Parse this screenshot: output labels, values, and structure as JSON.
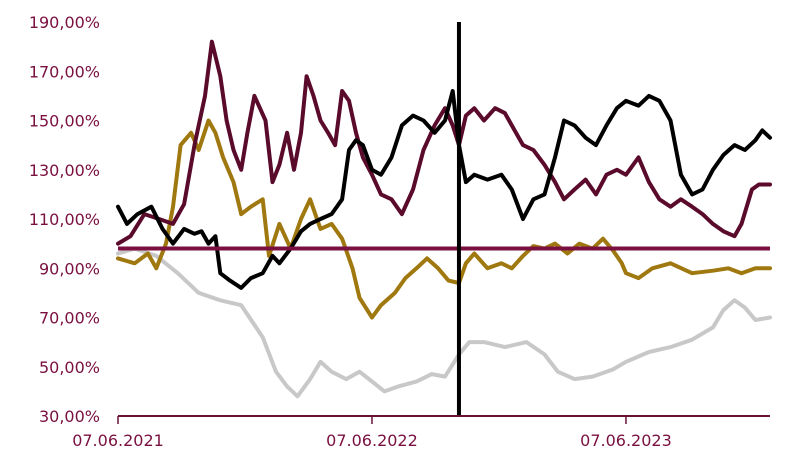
{
  "chart_data": {
    "type": "line",
    "title": "",
    "xlabel": "",
    "ylabel": "",
    "x_tick_labels": [
      "07.06.2021",
      "07.06.2022",
      "07.06.2023"
    ],
    "x_tick_dates": [
      "2021-06-07",
      "2022-06-07",
      "2023-06-07"
    ],
    "x_range": [
      "2021-06-07",
      "2023-12-31"
    ],
    "y_tick_labels": [
      "30,00%",
      "50,00%",
      "70,00%",
      "90,00%",
      "110,00%",
      "130,00%",
      "150,00%",
      "170,00%",
      "190,00%"
    ],
    "y_ticks": [
      30,
      50,
      70,
      90,
      110,
      130,
      150,
      170,
      190
    ],
    "ylim": [
      30,
      190
    ],
    "grid": false,
    "legend": "none",
    "reference_line": {
      "value": 98,
      "color": "#7a1040"
    },
    "vertical_marker": {
      "date": "2022-10-10",
      "color": "#000000"
    },
    "series": [
      {
        "color": "#c8c8c8",
        "points": [
          [
            "2021-06-07",
            96
          ],
          [
            "2021-07-01",
            98
          ],
          [
            "2021-08-01",
            95
          ],
          [
            "2021-09-01",
            88
          ],
          [
            "2021-10-01",
            80
          ],
          [
            "2021-11-01",
            77
          ],
          [
            "2021-12-01",
            75
          ],
          [
            "2022-01-01",
            62
          ],
          [
            "2022-01-20",
            48
          ],
          [
            "2022-02-05",
            42
          ],
          [
            "2022-02-20",
            38
          ],
          [
            "2022-03-10",
            45
          ],
          [
            "2022-03-25",
            52
          ],
          [
            "2022-04-10",
            48
          ],
          [
            "2022-05-01",
            45
          ],
          [
            "2022-05-20",
            48
          ],
          [
            "2022-06-07",
            44
          ],
          [
            "2022-06-25",
            40
          ],
          [
            "2022-07-15",
            42
          ],
          [
            "2022-08-10",
            44
          ],
          [
            "2022-09-01",
            47
          ],
          [
            "2022-09-20",
            46
          ],
          [
            "2022-10-10",
            55
          ],
          [
            "2022-10-25",
            60
          ],
          [
            "2022-11-15",
            60
          ],
          [
            "2022-12-15",
            58
          ],
          [
            "2023-01-15",
            60
          ],
          [
            "2023-02-10",
            55
          ],
          [
            "2023-03-01",
            48
          ],
          [
            "2023-03-25",
            45
          ],
          [
            "2023-04-20",
            46
          ],
          [
            "2023-05-20",
            49
          ],
          [
            "2023-06-07",
            52
          ],
          [
            "2023-07-10",
            56
          ],
          [
            "2023-08-10",
            58
          ],
          [
            "2023-09-10",
            61
          ],
          [
            "2023-10-10",
            66
          ],
          [
            "2023-10-25",
            73
          ],
          [
            "2023-11-10",
            77
          ],
          [
            "2023-11-25",
            74
          ],
          [
            "2023-12-10",
            69
          ],
          [
            "2023-12-31",
            70
          ]
        ]
      },
      {
        "color": "#a07810",
        "points": [
          [
            "2021-06-07",
            94
          ],
          [
            "2021-07-01",
            92
          ],
          [
            "2021-07-20",
            96
          ],
          [
            "2021-08-01",
            90
          ],
          [
            "2021-08-15",
            100
          ],
          [
            "2021-08-25",
            115
          ],
          [
            "2021-09-05",
            140
          ],
          [
            "2021-09-20",
            145
          ],
          [
            "2021-10-01",
            138
          ],
          [
            "2021-10-15",
            150
          ],
          [
            "2021-10-25",
            145
          ],
          [
            "2021-11-05",
            135
          ],
          [
            "2021-11-20",
            125
          ],
          [
            "2021-12-01",
            112
          ],
          [
            "2021-12-15",
            115
          ],
          [
            "2022-01-01",
            118
          ],
          [
            "2022-01-10",
            95
          ],
          [
            "2022-01-25",
            108
          ],
          [
            "2022-02-10",
            98
          ],
          [
            "2022-02-25",
            110
          ],
          [
            "2022-03-10",
            118
          ],
          [
            "2022-03-25",
            106
          ],
          [
            "2022-04-10",
            108
          ],
          [
            "2022-04-25",
            102
          ],
          [
            "2022-05-10",
            90
          ],
          [
            "2022-05-20",
            78
          ],
          [
            "2022-06-07",
            70
          ],
          [
            "2022-06-20",
            75
          ],
          [
            "2022-07-10",
            80
          ],
          [
            "2022-07-25",
            86
          ],
          [
            "2022-08-10",
            90
          ],
          [
            "2022-08-25",
            94
          ],
          [
            "2022-09-10",
            90
          ],
          [
            "2022-09-25",
            85
          ],
          [
            "2022-10-10",
            84
          ],
          [
            "2022-10-20",
            92
          ],
          [
            "2022-11-01",
            96
          ],
          [
            "2022-11-20",
            90
          ],
          [
            "2022-12-10",
            92
          ],
          [
            "2022-12-25",
            90
          ],
          [
            "2023-01-10",
            95
          ],
          [
            "2023-01-25",
            99
          ],
          [
            "2023-02-10",
            98
          ],
          [
            "2023-02-25",
            100
          ],
          [
            "2023-03-15",
            96
          ],
          [
            "2023-04-01",
            100
          ],
          [
            "2023-04-20",
            98
          ],
          [
            "2023-05-05",
            102
          ],
          [
            "2023-05-20",
            97
          ],
          [
            "2023-06-01",
            92
          ],
          [
            "2023-06-07",
            88
          ],
          [
            "2023-06-25",
            86
          ],
          [
            "2023-07-15",
            90
          ],
          [
            "2023-08-10",
            92
          ],
          [
            "2023-09-10",
            88
          ],
          [
            "2023-10-10",
            89
          ],
          [
            "2023-11-01",
            90
          ],
          [
            "2023-11-20",
            88
          ],
          [
            "2023-12-10",
            90
          ],
          [
            "2023-12-31",
            90
          ]
        ]
      },
      {
        "color": "#5a0a2a",
        "points": [
          [
            "2021-06-07",
            100
          ],
          [
            "2021-06-25",
            103
          ],
          [
            "2021-07-15",
            112
          ],
          [
            "2021-08-05",
            110
          ],
          [
            "2021-08-25",
            108
          ],
          [
            "2021-09-10",
            116
          ],
          [
            "2021-09-25",
            140
          ],
          [
            "2021-10-10",
            160
          ],
          [
            "2021-10-20",
            182
          ],
          [
            "2021-11-01",
            168
          ],
          [
            "2021-11-10",
            150
          ],
          [
            "2021-11-20",
            138
          ],
          [
            "2021-12-01",
            130
          ],
          [
            "2021-12-10",
            145
          ],
          [
            "2021-12-20",
            160
          ],
          [
            "2022-01-05",
            150
          ],
          [
            "2022-01-15",
            125
          ],
          [
            "2022-01-25",
            132
          ],
          [
            "2022-02-05",
            145
          ],
          [
            "2022-02-15",
            130
          ],
          [
            "2022-02-25",
            145
          ],
          [
            "2022-03-05",
            168
          ],
          [
            "2022-03-15",
            160
          ],
          [
            "2022-03-25",
            150
          ],
          [
            "2022-04-05",
            145
          ],
          [
            "2022-04-15",
            140
          ],
          [
            "2022-04-25",
            162
          ],
          [
            "2022-05-05",
            158
          ],
          [
            "2022-05-15",
            145
          ],
          [
            "2022-05-25",
            135
          ],
          [
            "2022-06-07",
            128
          ],
          [
            "2022-06-20",
            120
          ],
          [
            "2022-07-05",
            118
          ],
          [
            "2022-07-20",
            112
          ],
          [
            "2022-08-05",
            122
          ],
          [
            "2022-08-20",
            138
          ],
          [
            "2022-09-05",
            148
          ],
          [
            "2022-09-20",
            155
          ],
          [
            "2022-10-01",
            148
          ],
          [
            "2022-10-10",
            140
          ],
          [
            "2022-10-20",
            152
          ],
          [
            "2022-11-01",
            155
          ],
          [
            "2022-11-15",
            150
          ],
          [
            "2022-12-01",
            155
          ],
          [
            "2022-12-15",
            153
          ],
          [
            "2022-12-25",
            148
          ],
          [
            "2023-01-10",
            140
          ],
          [
            "2023-01-25",
            138
          ],
          [
            "2023-02-10",
            132
          ],
          [
            "2023-02-25",
            125
          ],
          [
            "2023-03-10",
            118
          ],
          [
            "2023-03-25",
            122
          ],
          [
            "2023-04-10",
            126
          ],
          [
            "2023-04-25",
            120
          ],
          [
            "2023-05-10",
            128
          ],
          [
            "2023-05-25",
            130
          ],
          [
            "2023-06-07",
            128
          ],
          [
            "2023-06-25",
            135
          ],
          [
            "2023-07-10",
            125
          ],
          [
            "2023-07-25",
            118
          ],
          [
            "2023-08-10",
            115
          ],
          [
            "2023-08-25",
            118
          ],
          [
            "2023-09-10",
            115
          ],
          [
            "2023-09-25",
            112
          ],
          [
            "2023-10-10",
            108
          ],
          [
            "2023-10-25",
            105
          ],
          [
            "2023-11-10",
            103
          ],
          [
            "2023-11-20",
            108
          ],
          [
            "2023-12-05",
            122
          ],
          [
            "2023-12-15",
            124
          ],
          [
            "2023-12-31",
            124
          ]
        ]
      },
      {
        "color": "#000000",
        "points": [
          [
            "2021-06-07",
            115
          ],
          [
            "2021-06-20",
            108
          ],
          [
            "2021-07-05",
            112
          ],
          [
            "2021-07-25",
            115
          ],
          [
            "2021-08-10",
            106
          ],
          [
            "2021-08-25",
            100
          ],
          [
            "2021-09-10",
            106
          ],
          [
            "2021-09-25",
            104
          ],
          [
            "2021-10-05",
            105
          ],
          [
            "2021-10-15",
            100
          ],
          [
            "2021-10-25",
            103
          ],
          [
            "2021-11-01",
            88
          ],
          [
            "2021-11-15",
            85
          ],
          [
            "2021-12-01",
            82
          ],
          [
            "2021-12-15",
            86
          ],
          [
            "2022-01-01",
            88
          ],
          [
            "2022-01-15",
            95
          ],
          [
            "2022-01-25",
            92
          ],
          [
            "2022-02-10",
            98
          ],
          [
            "2022-02-25",
            105
          ],
          [
            "2022-03-10",
            108
          ],
          [
            "2022-03-25",
            110
          ],
          [
            "2022-04-10",
            112
          ],
          [
            "2022-04-25",
            118
          ],
          [
            "2022-05-05",
            138
          ],
          [
            "2022-05-15",
            142
          ],
          [
            "2022-05-25",
            140
          ],
          [
            "2022-06-07",
            130
          ],
          [
            "2022-06-20",
            128
          ],
          [
            "2022-07-05",
            135
          ],
          [
            "2022-07-20",
            148
          ],
          [
            "2022-08-05",
            152
          ],
          [
            "2022-08-20",
            150
          ],
          [
            "2022-09-05",
            145
          ],
          [
            "2022-09-20",
            150
          ],
          [
            "2022-10-01",
            162
          ],
          [
            "2022-10-10",
            140
          ],
          [
            "2022-10-20",
            125
          ],
          [
            "2022-11-01",
            128
          ],
          [
            "2022-11-20",
            126
          ],
          [
            "2022-12-10",
            128
          ],
          [
            "2022-12-25",
            122
          ],
          [
            "2023-01-10",
            110
          ],
          [
            "2023-01-25",
            118
          ],
          [
            "2023-02-10",
            120
          ],
          [
            "2023-02-25",
            135
          ],
          [
            "2023-03-10",
            150
          ],
          [
            "2023-03-25",
            148
          ],
          [
            "2023-04-10",
            143
          ],
          [
            "2023-04-25",
            140
          ],
          [
            "2023-05-10",
            148
          ],
          [
            "2023-05-25",
            155
          ],
          [
            "2023-06-07",
            158
          ],
          [
            "2023-06-25",
            156
          ],
          [
            "2023-07-10",
            160
          ],
          [
            "2023-07-25",
            158
          ],
          [
            "2023-08-10",
            150
          ],
          [
            "2023-08-25",
            128
          ],
          [
            "2023-09-10",
            120
          ],
          [
            "2023-09-25",
            122
          ],
          [
            "2023-10-10",
            130
          ],
          [
            "2023-10-25",
            136
          ],
          [
            "2023-11-10",
            140
          ],
          [
            "2023-11-25",
            138
          ],
          [
            "2023-12-10",
            142
          ],
          [
            "2023-12-20",
            146
          ],
          [
            "2023-12-31",
            143
          ]
        ]
      }
    ]
  }
}
